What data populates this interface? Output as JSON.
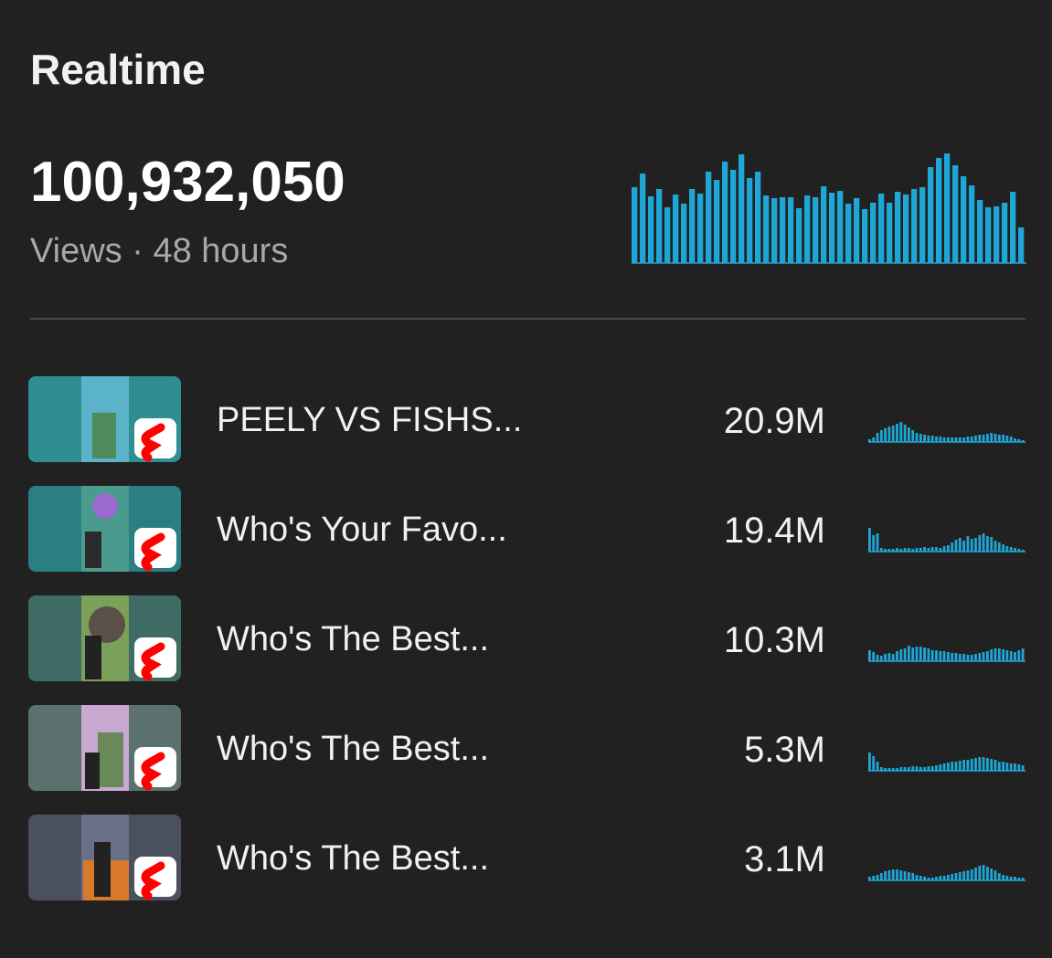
{
  "title": "Realtime",
  "total": {
    "views": "100,932,050",
    "label": "Views · 48 hours",
    "bar_color": "#1ea6d6",
    "chart": [
      83,
      98,
      73,
      81,
      61,
      75,
      65,
      81,
      76,
      100,
      91,
      111,
      102,
      119,
      93,
      100,
      74,
      71,
      72,
      72,
      60,
      74,
      72,
      84,
      77,
      79,
      65,
      71,
      59,
      66,
      76,
      66,
      78,
      75,
      81,
      83,
      105,
      115,
      120,
      107,
      95,
      85,
      69,
      61,
      62,
      66,
      78,
      39
    ]
  },
  "videos": [
    {
      "title": "PEELY VS FISHS...",
      "views": "20.9M",
      "chart": [
        3,
        5,
        10,
        13,
        15,
        17,
        18,
        20,
        22,
        19,
        16,
        13,
        10,
        9,
        8,
        7,
        7,
        6,
        6,
        5,
        5,
        5,
        5,
        5,
        5,
        6,
        6,
        7,
        8,
        8,
        9,
        10,
        9,
        8,
        8,
        7,
        6,
        4,
        3,
        2
      ]
    },
    {
      "title": "Who's Your Favo...",
      "views": "19.4M",
      "chart": [
        26,
        18,
        20,
        4,
        3,
        3,
        3,
        4,
        3,
        4,
        4,
        3,
        4,
        4,
        5,
        4,
        5,
        5,
        4,
        6,
        7,
        10,
        13,
        15,
        12,
        17,
        14,
        15,
        18,
        20,
        17,
        16,
        12,
        10,
        8,
        6,
        5,
        4,
        3,
        2
      ]
    },
    {
      "title": "Who's The Best...",
      "views": "10.3M",
      "chart": [
        12,
        10,
        7,
        6,
        8,
        9,
        8,
        11,
        13,
        14,
        17,
        15,
        16,
        16,
        15,
        14,
        12,
        12,
        11,
        11,
        10,
        9,
        9,
        8,
        8,
        7,
        7,
        8,
        9,
        10,
        11,
        13,
        14,
        14,
        13,
        12,
        11,
        10,
        12,
        14
      ]
    },
    {
      "title": "Who's The Best...",
      "views": "5.3M",
      "chart": [
        20,
        16,
        10,
        4,
        3,
        3,
        3,
        3,
        4,
        4,
        4,
        5,
        5,
        4,
        4,
        5,
        5,
        6,
        7,
        8,
        9,
        10,
        10,
        11,
        12,
        12,
        13,
        14,
        15,
        15,
        14,
        13,
        12,
        10,
        10,
        9,
        8,
        8,
        7,
        6
      ]
    },
    {
      "title": "Who's The Best...",
      "views": "3.1M",
      "chart": [
        4,
        5,
        6,
        8,
        10,
        11,
        12,
        12,
        11,
        10,
        9,
        8,
        6,
        5,
        4,
        3,
        3,
        4,
        5,
        5,
        6,
        7,
        8,
        9,
        10,
        11,
        12,
        14,
        16,
        17,
        15,
        13,
        11,
        8,
        6,
        5,
        4,
        4,
        3,
        3
      ]
    }
  ]
}
